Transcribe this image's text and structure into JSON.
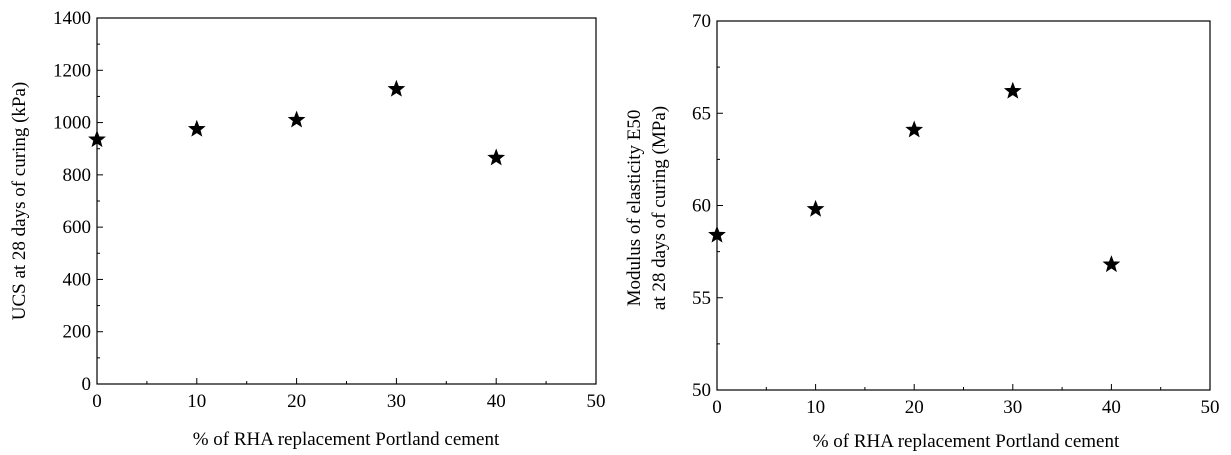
{
  "chart_data": [
    {
      "type": "scatter",
      "title": "",
      "xlabel": "% of RHA replacement Portland cement",
      "ylabel": "UCS at 28 days of curing (kPa)",
      "xlim": [
        0,
        50
      ],
      "ylim": [
        0,
        1400
      ],
      "xticks": [
        0,
        10,
        20,
        30,
        40,
        50
      ],
      "yticks": [
        0,
        200,
        400,
        600,
        800,
        1000,
        1200,
        1400
      ],
      "grid": false,
      "marker": "star",
      "marker_color": "#000000",
      "series": [
        {
          "x": [
            0,
            10,
            20,
            30,
            40
          ],
          "y": [
            935,
            975,
            1010,
            1128,
            865
          ]
        }
      ]
    },
    {
      "type": "scatter",
      "title": "",
      "xlabel": "% of RHA replacement Portland cement",
      "ylabel_lines": [
        "Modulus of elasticity E50",
        "at 28 days of curing (MPa)"
      ],
      "xlim": [
        0,
        50
      ],
      "ylim": [
        50,
        70
      ],
      "xticks": [
        0,
        10,
        20,
        30,
        40,
        50
      ],
      "yticks": [
        50,
        55,
        60,
        65,
        70
      ],
      "grid": false,
      "marker": "star",
      "marker_color": "#000000",
      "series": [
        {
          "x": [
            0,
            10,
            20,
            30,
            40
          ],
          "y": [
            58.4,
            59.8,
            64.1,
            66.2,
            56.8
          ]
        }
      ]
    }
  ]
}
